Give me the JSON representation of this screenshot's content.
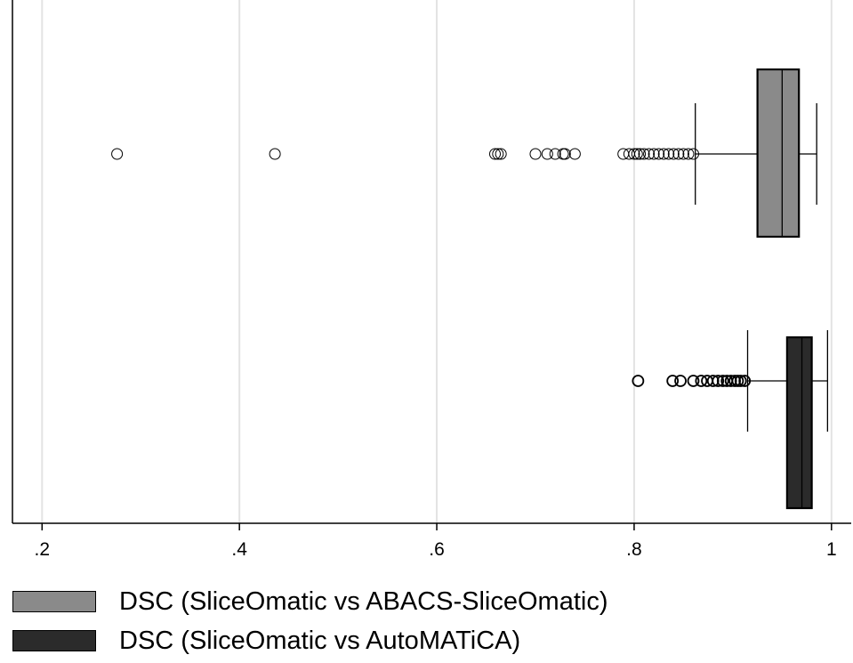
{
  "chart_data": {
    "type": "boxplot",
    "orientation": "horizontal",
    "xlim": [
      0.17,
      1.02
    ],
    "xticks": [
      0.2,
      0.4,
      0.6,
      0.8,
      1.0
    ],
    "xtick_labels": [
      ".2",
      ".4",
      ".6",
      ".8",
      "1"
    ],
    "grid": true,
    "legend_position": "bottom-left",
    "series": [
      {
        "name": "DSC (SliceOmatic vs ABACS-SliceOmatic)",
        "color": "#8a8a8a",
        "whisker_low": 0.862,
        "q1": 0.925,
        "median": 0.95,
        "q3": 0.967,
        "whisker_high": 0.985,
        "outliers": [
          0.276,
          0.436,
          0.659,
          0.662,
          0.665,
          0.7,
          0.712,
          0.72,
          0.728,
          0.73,
          0.74,
          0.789,
          0.795,
          0.8,
          0.803,
          0.806,
          0.81,
          0.815,
          0.82,
          0.825,
          0.83,
          0.835,
          0.84,
          0.845,
          0.85,
          0.855,
          0.86
        ]
      },
      {
        "name": "DSC (SliceOmatic vs AutoMATiCA)",
        "color": "#2b2b2b",
        "whisker_low": 0.915,
        "q1": 0.955,
        "median": 0.97,
        "q3": 0.98,
        "whisker_high": 0.996,
        "outliers": [
          0.804,
          0.839,
          0.847,
          0.86,
          0.868,
          0.874,
          0.88,
          0.885,
          0.89,
          0.894,
          0.898,
          0.902,
          0.905,
          0.908,
          0.912
        ]
      }
    ]
  },
  "legend": {
    "items": [
      {
        "label": "DSC (SliceOmatic vs ABACS-SliceOmatic)",
        "color": "#8a8a8a"
      },
      {
        "label": "DSC (SliceOmatic vs AutoMATiCA)",
        "color": "#2b2b2b"
      }
    ]
  }
}
